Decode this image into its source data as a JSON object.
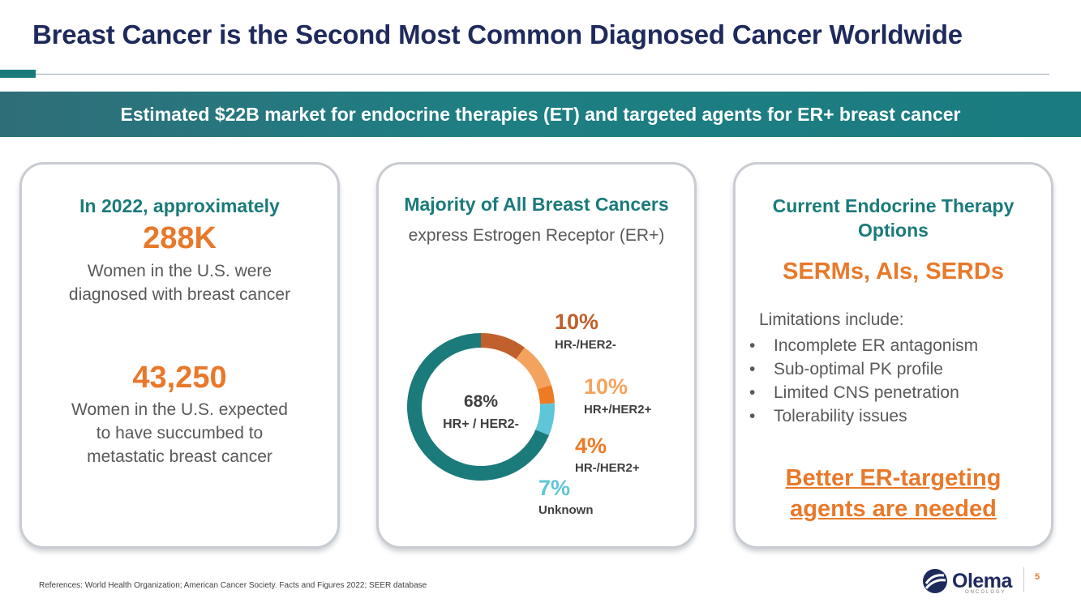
{
  "slide": {
    "title": "Breast Cancer is the Second Most Common Diagnosed Cancer Worldwide",
    "banner": "Estimated $22B market for endocrine therapies (ET) and targeted agents for ER+ breast cancer",
    "page_number": "5",
    "references": "References: World Health Organization; American Cancer Society. Facts and Figures 2022; SEER database",
    "logo_text": "Olema",
    "logo_sub": "ONCOLOGY"
  },
  "card1": {
    "heading": "In 2022, approximately",
    "stat1": "288K",
    "stat1_line1": "Women in the U.S. were",
    "stat1_line2": "diagnosed with breast cancer",
    "stat2": "43,250",
    "stat2_line1": "Women in the U.S. expected",
    "stat2_line2": "to have succumbed to",
    "stat2_line3": "metastatic breast cancer"
  },
  "card2": {
    "heading": "Majority of All Breast Cancers",
    "subheading": "express Estrogen Receptor (ER+)"
  },
  "card3": {
    "heading_line1": "Current Endocrine Therapy",
    "heading_line2": "Options",
    "highlight": "SERMs, AIs, SERDs",
    "limitations_label": "Limitations include:",
    "limitations": [
      "Incomplete ER antagonism",
      "Sub-optimal PK profile",
      "Limited CNS penetration",
      "Tolerability issues"
    ],
    "cta_line1": "Better ER-targeting",
    "cta_line2": "agents are needed"
  },
  "chart_data": {
    "type": "pie",
    "title": "Majority of All Breast Cancers express Estrogen Receptor (ER+)",
    "center_value": "68%",
    "center_label": "HR+ / HER2-",
    "slices": [
      {
        "label": "HR+ / HER2-",
        "pct_text": "68%",
        "value": 68,
        "color": "#1b7a7a"
      },
      {
        "label": "HR-/HER2-",
        "pct_text": "10%",
        "value": 10,
        "color": "#c0602c"
      },
      {
        "label": "HR+/HER2+",
        "pct_text": "10%",
        "value": 10,
        "color": "#f4a35f"
      },
      {
        "label": "HR-/HER2+",
        "pct_text": "4%",
        "value": 4,
        "color": "#ee7a22"
      },
      {
        "label": "Unknown",
        "pct_text": "7%",
        "value": 7,
        "color": "#5ec6d8"
      }
    ]
  }
}
